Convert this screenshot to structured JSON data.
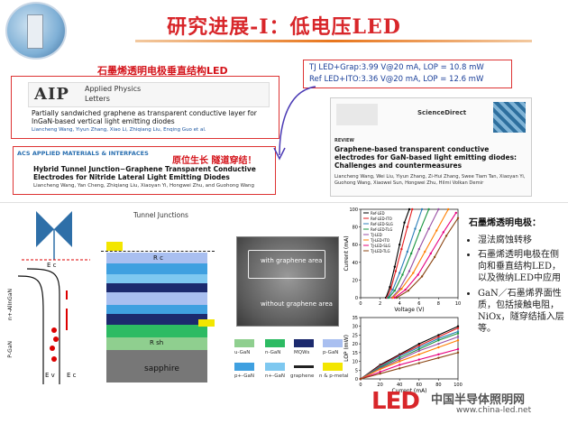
{
  "header": {
    "title": "研究进展-I：低电压LED"
  },
  "left_papers": {
    "caption1": "石墨烯透明电极垂直结构LED",
    "aip_logo": "AIP",
    "aip_journal": "Applied Physics",
    "aip_journal2": "Letters",
    "aip_title": "Partially sandwiched graphene as transparent conductive layer for InGaN-based vertical light emitting diodes",
    "aip_authors": "Liancheng Wang, Yiyun Zhang, Xiao Li, Zhiqiang Liu, Enqing Guo et al.",
    "caption2": "原位生长 隧道穿结！",
    "acs_logo": "ACS APPLIED MATERIALS & INTERFACES",
    "acs_title": "Hybrid Tunnel Junction−Graphene Transparent Conductive Electrodes for Nitride Lateral Light Emitting Diodes",
    "acs_authors": "Liancheng Wang, Yan Cheng, Zhiqiang Liu, Xiaoyan Yi, Hongwei Zhu, and Guohong Wang"
  },
  "right_info": {
    "line1": "TJ LED+Grap:3.99  V@20 mA, LOP = 10.8 mW",
    "line2": "Ref LED+ITO:3.36  V@20 mA, LOP = 12.6 mW",
    "sd_logo": "ScienceDirect",
    "review_label": "REVIEW",
    "review_title": "Graphene-based transparent conductive electrodes for GaN-based light emitting diodes: Challenges and countermeasures",
    "review_authors": "Liancheng Wang, Wei Liu, Yiyun Zhang, Zi-Hui Zhang, Swee Tiam Tan, Xiaoyan Yi, Guohong Wang, Xiaowei Sun, Hongwei Zhu, Hilmi Volkan Demir"
  },
  "diagram": {
    "tunnel_label": "Tunnel Junctions",
    "rc": "R c",
    "rsh": "R sh",
    "sapphire": "sapphire",
    "ec": "E c",
    "ev": "E v",
    "n_layer": "n+-AlInGaN",
    "p_layer": "P-GaN",
    "e_upper": "E c",
    "e_lower": "E v"
  },
  "legend": {
    "items": [
      {
        "label": "u-GaN",
        "color": "#8fcf8f"
      },
      {
        "label": "n-GaN",
        "color": "#2dbb63"
      },
      {
        "label": "MQWs",
        "color": "#1c2a6e"
      },
      {
        "label": "p-GaN",
        "color": "#a9bff0"
      },
      {
        "label": "p+-GaN",
        "color": "#3fa0e0"
      },
      {
        "label": "n+-GaN",
        "color": "#7ec8f0"
      },
      {
        "label": "graphene",
        "color": "#222222"
      },
      {
        "label": "n & p-metal",
        "color": "#f3e600"
      }
    ]
  },
  "sem": {
    "label1": "with graphene area",
    "label2": "without graphene area"
  },
  "iv_chart": {
    "legend": [
      "Ref-LED",
      "Ref-LED-ITO",
      "Ref-LED-SLG",
      "Ref-LED-TLG",
      "TJ-LED",
      "TJ-LED-ITO",
      "TJ-LED-SLG",
      "TJ-LED-TLG"
    ]
  },
  "chart_data": [
    {
      "type": "line",
      "xlabel": "Voltage (V)",
      "ylabel": "Current (mA)",
      "xlim": [
        0,
        10
      ],
      "ylim": [
        0,
        100
      ],
      "x_ticks": [
        "0",
        "2",
        "4",
        "6",
        "8",
        "10"
      ],
      "y_ticks": [
        "0",
        "20",
        "40",
        "60",
        "80",
        "100"
      ],
      "series": [
        {
          "name": "Ref-LED",
          "color": "#000000",
          "x": [
            2.6,
            3.0,
            3.5,
            4.0,
            4.5,
            5.0
          ],
          "y": [
            0,
            12,
            35,
            60,
            85,
            100
          ]
        },
        {
          "name": "Ref-LED-ITO",
          "color": "#e41a1c",
          "x": [
            2.7,
            3.1,
            3.6,
            4.2,
            4.8,
            5.3
          ],
          "y": [
            0,
            10,
            30,
            55,
            80,
            100
          ]
        },
        {
          "name": "Ref-LED-SLG",
          "color": "#2c7fb8",
          "x": [
            2.8,
            3.3,
            4.0,
            4.8,
            5.6,
            6.3
          ],
          "y": [
            0,
            9,
            28,
            52,
            78,
            100
          ]
        },
        {
          "name": "Ref-LED-TLG",
          "color": "#1a9641",
          "x": [
            2.9,
            3.5,
            4.3,
            5.2,
            6.1,
            7.0
          ],
          "y": [
            0,
            8,
            26,
            50,
            76,
            100
          ]
        },
        {
          "name": "TJ-LED",
          "color": "#984ea3",
          "x": [
            3.2,
            4.0,
            5.0,
            6.0,
            7.0,
            8.0
          ],
          "y": [
            0,
            10,
            30,
            55,
            78,
            100
          ]
        },
        {
          "name": "TJ-LED-ITO",
          "color": "#ff7f00",
          "x": [
            3.3,
            4.2,
            5.4,
            6.6,
            7.8,
            9.0
          ],
          "y": [
            0,
            10,
            28,
            52,
            76,
            100
          ]
        },
        {
          "name": "TJ-LED-SLG",
          "color": "#e6007e",
          "x": [
            3.5,
            4.6,
            5.9,
            7.2,
            8.5,
            9.8
          ],
          "y": [
            0,
            9,
            26,
            50,
            74,
            96
          ]
        },
        {
          "name": "TJ-LED-TLG",
          "color": "#8b4513",
          "x": [
            3.7,
            4.9,
            6.3,
            7.6,
            8.8,
            10.0
          ],
          "y": [
            0,
            8,
            24,
            46,
            70,
            90
          ]
        }
      ]
    },
    {
      "type": "line",
      "xlabel": "Current (mA)",
      "ylabel": "LOP (mW)",
      "xlim": [
        0,
        100
      ],
      "ylim": [
        0,
        35
      ],
      "x_ticks": [
        "0",
        "20",
        "40",
        "60",
        "80",
        "100"
      ],
      "y_ticks": [
        "0",
        "5",
        "10",
        "15",
        "20",
        "25",
        "30",
        "35"
      ],
      "series": [
        {
          "name": "Ref-LED",
          "color": "#000000",
          "x": [
            0,
            20,
            40,
            60,
            80,
            100
          ],
          "y": [
            0,
            8,
            14,
            20,
            25,
            30
          ]
        },
        {
          "name": "Ref-LED-ITO",
          "color": "#e41a1c",
          "x": [
            0,
            20,
            40,
            60,
            80,
            100
          ],
          "y": [
            0,
            7.5,
            13.5,
            19,
            24,
            29
          ]
        },
        {
          "name": "Ref-LED-SLG",
          "color": "#2c7fb8",
          "x": [
            0,
            20,
            40,
            60,
            80,
            100
          ],
          "y": [
            0,
            7,
            13,
            18,
            23,
            27
          ]
        },
        {
          "name": "Ref-LED-TLG",
          "color": "#1a9641",
          "x": [
            0,
            20,
            40,
            60,
            80,
            100
          ],
          "y": [
            0,
            6.5,
            12,
            17,
            22,
            26
          ]
        },
        {
          "name": "TJ-LED",
          "color": "#984ea3",
          "x": [
            0,
            20,
            40,
            60,
            80,
            100
          ],
          "y": [
            0,
            6,
            11,
            16,
            20,
            24
          ]
        },
        {
          "name": "TJ-LED-ITO",
          "color": "#ff7f00",
          "x": [
            0,
            20,
            40,
            60,
            80,
            100
          ],
          "y": [
            0,
            5.5,
            10,
            14,
            18,
            22
          ]
        },
        {
          "name": "TJ-LED-SLG",
          "color": "#e6007e",
          "x": [
            0,
            20,
            40,
            60,
            80,
            100
          ],
          "y": [
            0,
            4,
            8,
            11,
            14,
            17
          ]
        },
        {
          "name": "TJ-LED-TLG",
          "color": "#8b4513",
          "x": [
            0,
            20,
            40,
            60,
            80,
            100
          ],
          "y": [
            0,
            3,
            6,
            9,
            12,
            15
          ]
        }
      ]
    }
  ],
  "bullets": {
    "heading": "石墨烯透明电极：",
    "items": [
      "湿法腐蚀转移",
      "石墨烯透明电极在侧向和垂直结构LED，以及微纳LED中应用",
      "GaN／石墨烯界面性质，包括接触电阻，NiOx，隧穿结插入层等。"
    ]
  },
  "watermark": {
    "logo_text": "LED",
    "cn": "中国半导体照明网",
    "url": "www.china-led.net"
  }
}
